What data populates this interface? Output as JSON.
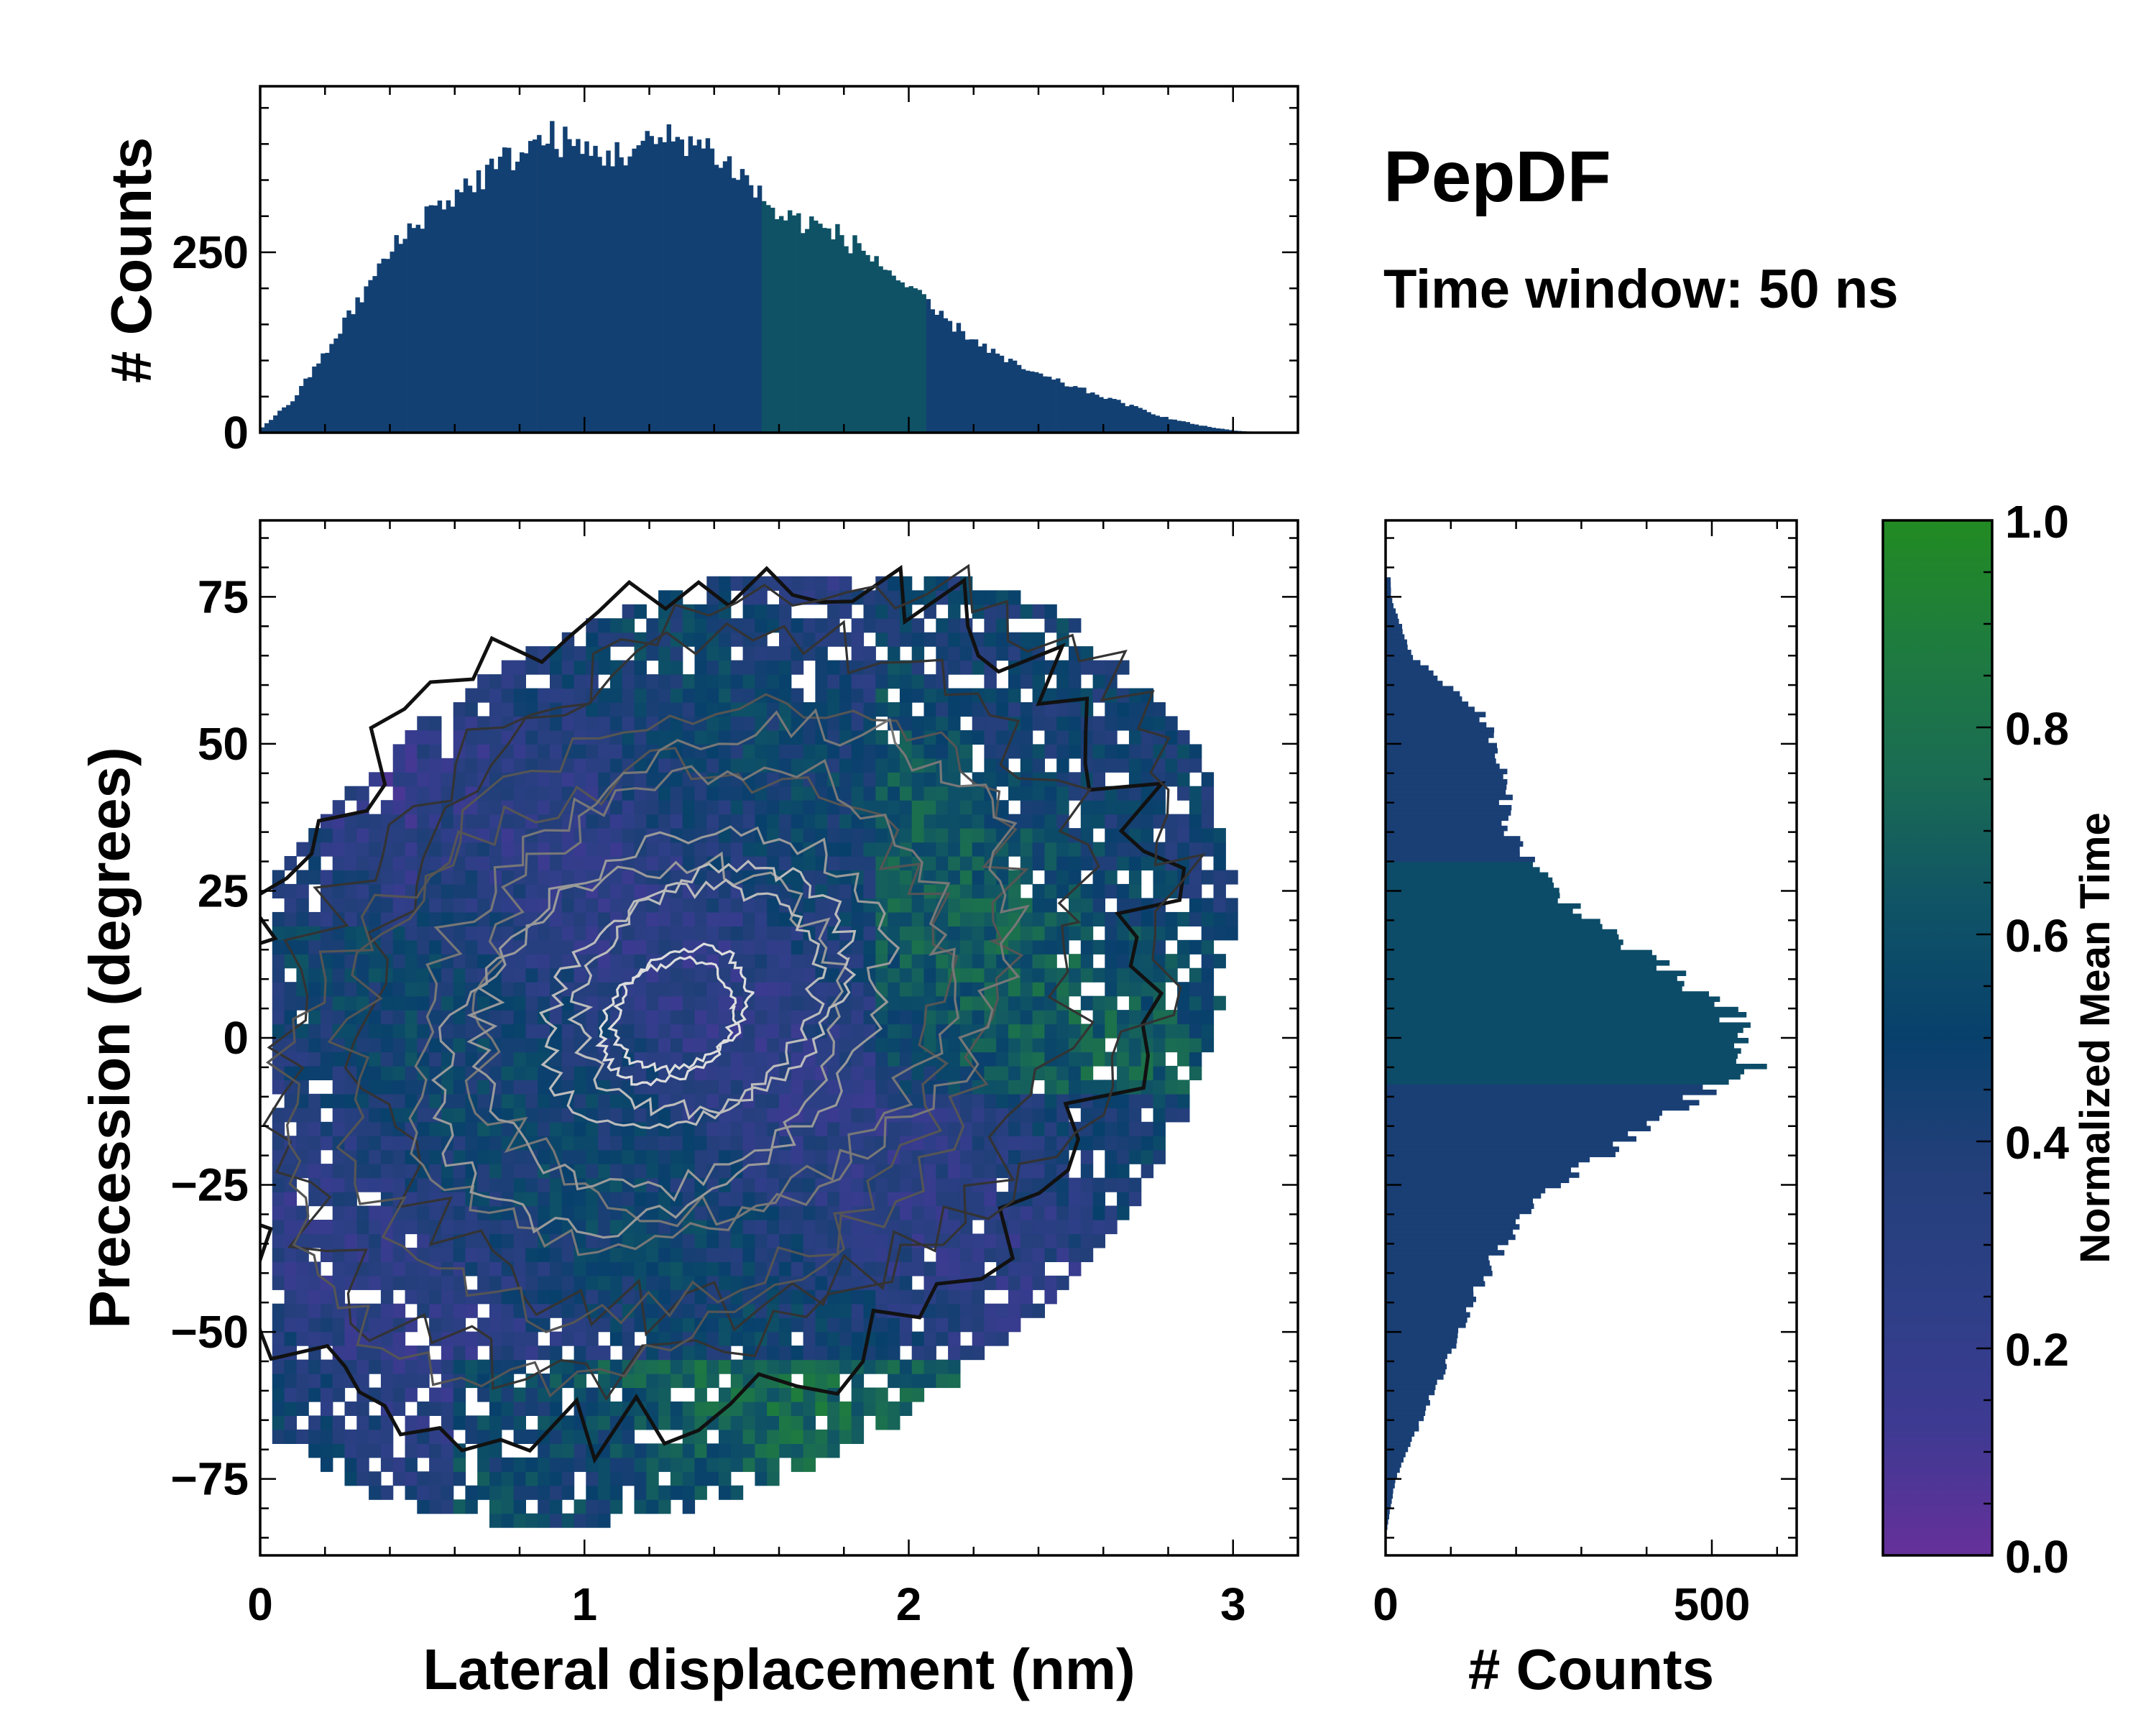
{
  "title": "PepDF",
  "subtitle": "Time window: 50 ns",
  "colors": {
    "cmap": [
      "#66309a",
      "#3d3a92",
      "#2d3f86",
      "#233f7a",
      "#08406c",
      "#0f5366",
      "#1a6b54",
      "#1e7b3f",
      "#228b22"
    ],
    "contour_levels": [
      "#111111",
      "#333333",
      "#555555",
      "#777777",
      "#999999",
      "#bbbbbb",
      "#dddddd"
    ]
  },
  "chart_data": [
    {
      "name": "joint",
      "type": "heatmap",
      "xlabel": "Lateral displacement (nm)",
      "ylabel": "Precession (degrees)",
      "xlim": [
        0,
        3.2
      ],
      "ylim": [
        -88,
        88
      ],
      "xticks": [
        "0",
        "1",
        "2",
        "3"
      ],
      "xtick_values": [
        0,
        1,
        2,
        3
      ],
      "yticks": [
        "75",
        "50",
        "25",
        "0",
        "−25",
        "−50",
        "−75"
      ],
      "ytick_values": [
        75,
        50,
        25,
        0,
        -25,
        -50,
        -75
      ],
      "density_peak": {
        "x": 1.3,
        "y": 5
      },
      "color_meaning": "Normalized Mean Time"
    },
    {
      "name": "top_histogram",
      "type": "bar",
      "ylabel": "# Counts",
      "xlim": [
        0,
        3.2
      ],
      "ylim": [
        0,
        480
      ],
      "yticks": [
        "0",
        "250"
      ],
      "ytick_values": [
        0,
        250
      ],
      "bin_centers": [
        0.0,
        0.1,
        0.2,
        0.3,
        0.4,
        0.5,
        0.6,
        0.7,
        0.8,
        0.9,
        1.0,
        1.1,
        1.2,
        1.3,
        1.4,
        1.5,
        1.6,
        1.7,
        1.8,
        1.9,
        2.0,
        2.1,
        2.2,
        2.3,
        2.4,
        2.5,
        2.6,
        2.7,
        2.8,
        2.9,
        3.0,
        3.1
      ],
      "values": [
        5,
        45,
        110,
        180,
        250,
        300,
        330,
        360,
        390,
        410,
        390,
        385,
        400,
        410,
        390,
        350,
        300,
        290,
        270,
        240,
        200,
        160,
        130,
        100,
        80,
        65,
        50,
        35,
        20,
        10,
        3,
        0
      ]
    },
    {
      "name": "right_histogram",
      "type": "bar",
      "orientation": "horizontal",
      "xlabel": "# Counts",
      "xlim": [
        0,
        630
      ],
      "xticks": [
        "0",
        "500"
      ],
      "xtick_values": [
        0,
        500
      ],
      "bin_centers": [
        75,
        65,
        55,
        45,
        35,
        25,
        15,
        5,
        -5,
        -15,
        -25,
        -35,
        -45,
        -55,
        -65,
        -75,
        -85
      ],
      "values": [
        8,
        40,
        150,
        180,
        190,
        260,
        380,
        520,
        560,
        400,
        260,
        180,
        130,
        95,
        55,
        15,
        0
      ]
    },
    {
      "name": "colorbar",
      "type": "heatmap",
      "label": "Normalized Mean Time",
      "range": [
        0.0,
        1.0
      ],
      "ticks": [
        "0.0",
        "0.2",
        "0.4",
        "0.6",
        "0.8",
        "1.0"
      ],
      "tick_values": [
        0.0,
        0.2,
        0.4,
        0.6,
        0.8,
        1.0
      ]
    }
  ]
}
